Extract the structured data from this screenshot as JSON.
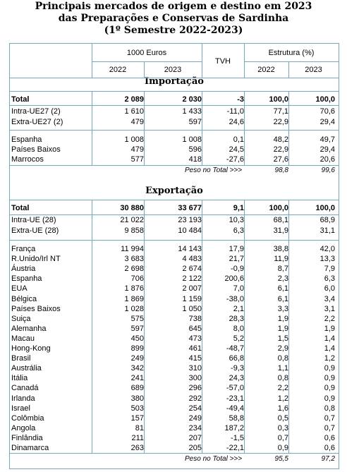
{
  "title": {
    "line1": "Principais mercados de origem e destino em 2023",
    "line2": "das Preparações e Conservas de Sardinha",
    "line3": "(1º Semestre 2022-2023)"
  },
  "header": {
    "group_values": "1000 Euros",
    "tvh": "TVH",
    "group_struct": "Estrutura (%)",
    "y2022": "2022",
    "y2023": "2023",
    "y2022b": "2022",
    "y2023b": "2023"
  },
  "import": {
    "section": "Importação",
    "summary": [
      {
        "name": "Total",
        "v2022": "2 089",
        "v2023": "2 030",
        "tvh": "-3",
        "e2022": "100,0",
        "e2023": "100,0"
      },
      {
        "name": "Intra-UE27 (2)",
        "v2022": "1 610",
        "v2023": "1 433",
        "tvh": "-11,0",
        "e2022": "77,1",
        "e2023": "70,6"
      },
      {
        "name": "Extra-UE27 (2)",
        "v2022": "479",
        "v2023": "597",
        "tvh": "24,6",
        "e2022": "22,9",
        "e2023": "29,4"
      }
    ],
    "rows": [
      {
        "name": "Espanha",
        "v2022": "1 008",
        "v2023": "1 008",
        "tvh": "0,1",
        "e2022": "48,2",
        "e2023": "49,7"
      },
      {
        "name": "Países Baixos",
        "v2022": "479",
        "v2023": "596",
        "tvh": "24,5",
        "e2022": "22,9",
        "e2023": "29,4"
      },
      {
        "name": "Marrocos",
        "v2022": "577",
        "v2023": "418",
        "tvh": "-27,6",
        "e2022": "27,6",
        "e2023": "20,6"
      }
    ],
    "peso_label": "Peso no Total >>>",
    "peso_2022": "98,8",
    "peso_2023": "99,6"
  },
  "export": {
    "section": "Exportação",
    "summary": [
      {
        "name": "Total",
        "v2022": "30 880",
        "v2023": "33 677",
        "tvh": "9,1",
        "e2022": "100,0",
        "e2023": "100,0"
      },
      {
        "name": "Intra-UE (28)",
        "v2022": "21 022",
        "v2023": "23 193",
        "tvh": "10,3",
        "e2022": "68,1",
        "e2023": "68,9"
      },
      {
        "name": "Extra-UE (28)",
        "v2022": "9 858",
        "v2023": "10 484",
        "tvh": "6,3",
        "e2022": "31,9",
        "e2023": "31,1"
      }
    ],
    "rows": [
      {
        "name": "França",
        "v2022": "11 994",
        "v2023": "14 143",
        "tvh": "17,9",
        "e2022": "38,8",
        "e2023": "42,0"
      },
      {
        "name": "R.Unido/Irl NT",
        "v2022": "3 683",
        "v2023": "4 483",
        "tvh": "21,7",
        "e2022": "11,9",
        "e2023": "13,3"
      },
      {
        "name": "Áustria",
        "v2022": "2 698",
        "v2023": "2 674",
        "tvh": "-0,9",
        "e2022": "8,7",
        "e2023": "7,9"
      },
      {
        "name": "Espanha",
        "v2022": "706",
        "v2023": "2 122",
        "tvh": "200,6",
        "e2022": "2,3",
        "e2023": "6,3"
      },
      {
        "name": "EUA",
        "v2022": "1 876",
        "v2023": "2 007",
        "tvh": "7,0",
        "e2022": "6,1",
        "e2023": "6,0"
      },
      {
        "name": "Bélgica",
        "v2022": "1 869",
        "v2023": "1 159",
        "tvh": "-38,0",
        "e2022": "6,1",
        "e2023": "3,4"
      },
      {
        "name": "Países Baixos",
        "v2022": "1 028",
        "v2023": "1 050",
        "tvh": "2,1",
        "e2022": "3,3",
        "e2023": "3,1"
      },
      {
        "name": "Suiça",
        "v2022": "575",
        "v2023": "738",
        "tvh": "28,3",
        "e2022": "1,9",
        "e2023": "2,2"
      },
      {
        "name": "Alemanha",
        "v2022": "597",
        "v2023": "645",
        "tvh": "8,0",
        "e2022": "1,9",
        "e2023": "1,9"
      },
      {
        "name": "Macau",
        "v2022": "450",
        "v2023": "473",
        "tvh": "5,2",
        "e2022": "1,5",
        "e2023": "1,4"
      },
      {
        "name": "Hong-Kong",
        "v2022": "899",
        "v2023": "461",
        "tvh": "-48,7",
        "e2022": "2,9",
        "e2023": "1,4"
      },
      {
        "name": "Brasil",
        "v2022": "249",
        "v2023": "415",
        "tvh": "66,8",
        "e2022": "0,8",
        "e2023": "1,2"
      },
      {
        "name": "Austrália",
        "v2022": "342",
        "v2023": "310",
        "tvh": "-9,3",
        "e2022": "1,1",
        "e2023": "0,9"
      },
      {
        "name": "Itália",
        "v2022": "241",
        "v2023": "300",
        "tvh": "24,3",
        "e2022": "0,8",
        "e2023": "0,9"
      },
      {
        "name": "Canadá",
        "v2022": "689",
        "v2023": "296",
        "tvh": "-57,0",
        "e2022": "2,2",
        "e2023": "0,9"
      },
      {
        "name": "Irlanda",
        "v2022": "380",
        "v2023": "292",
        "tvh": "-23,1",
        "e2022": "1,2",
        "e2023": "0,9"
      },
      {
        "name": "Israel",
        "v2022": "503",
        "v2023": "254",
        "tvh": "-49,4",
        "e2022": "1,6",
        "e2023": "0,8"
      },
      {
        "name": "Colômbia",
        "v2022": "157",
        "v2023": "249",
        "tvh": "58,8",
        "e2022": "0,5",
        "e2023": "0,7"
      },
      {
        "name": "Angola",
        "v2022": "81",
        "v2023": "234",
        "tvh": "187,2",
        "e2022": "0,3",
        "e2023": "0,7"
      },
      {
        "name": "Finlândia",
        "v2022": "211",
        "v2023": "207",
        "tvh": "-1,5",
        "e2022": "0,7",
        "e2023": "0,6"
      },
      {
        "name": "Dinamarca",
        "v2022": "263",
        "v2023": "205",
        "tvh": "-22,1",
        "e2022": "0,9",
        "e2023": "0,6"
      }
    ],
    "peso_label": "Peso no Total >>>",
    "peso_2022": "95,5",
    "peso_2023": "97,2"
  }
}
